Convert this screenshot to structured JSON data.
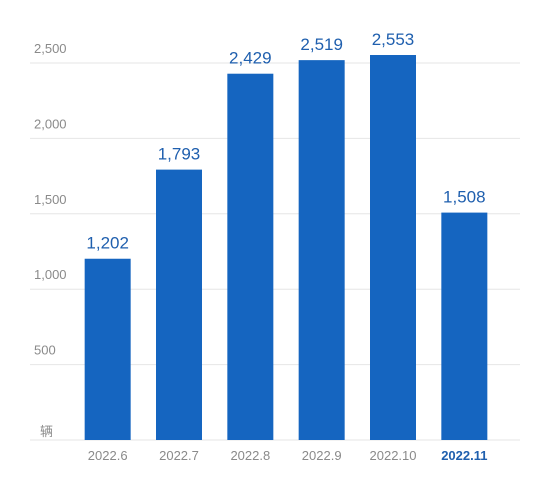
{
  "chart_data": {
    "type": "bar",
    "categories": [
      "2022.6",
      "2022.7",
      "2022.8",
      "2022.9",
      "2022.10",
      "2022.11"
    ],
    "values": [
      1202,
      1793,
      2429,
      2519,
      2553,
      1508
    ],
    "data_labels": [
      "1,202",
      "1,793",
      "2,429",
      "2,519",
      "2,553",
      "1,508"
    ],
    "highlight_category": "2022.11",
    "y_ticks": [
      500,
      1000,
      1500,
      2000,
      2500
    ],
    "y_tick_labels": [
      "500",
      "1,000",
      "1,500",
      "2,000",
      "2,500"
    ],
    "ylim": [
      0,
      2500
    ],
    "unit": "辆",
    "grid": true,
    "colors": {
      "bar": "#1565c0",
      "label": "#1f5fae",
      "grid": "#e6e6e6",
      "axis_text": "#8a8a8a"
    }
  }
}
